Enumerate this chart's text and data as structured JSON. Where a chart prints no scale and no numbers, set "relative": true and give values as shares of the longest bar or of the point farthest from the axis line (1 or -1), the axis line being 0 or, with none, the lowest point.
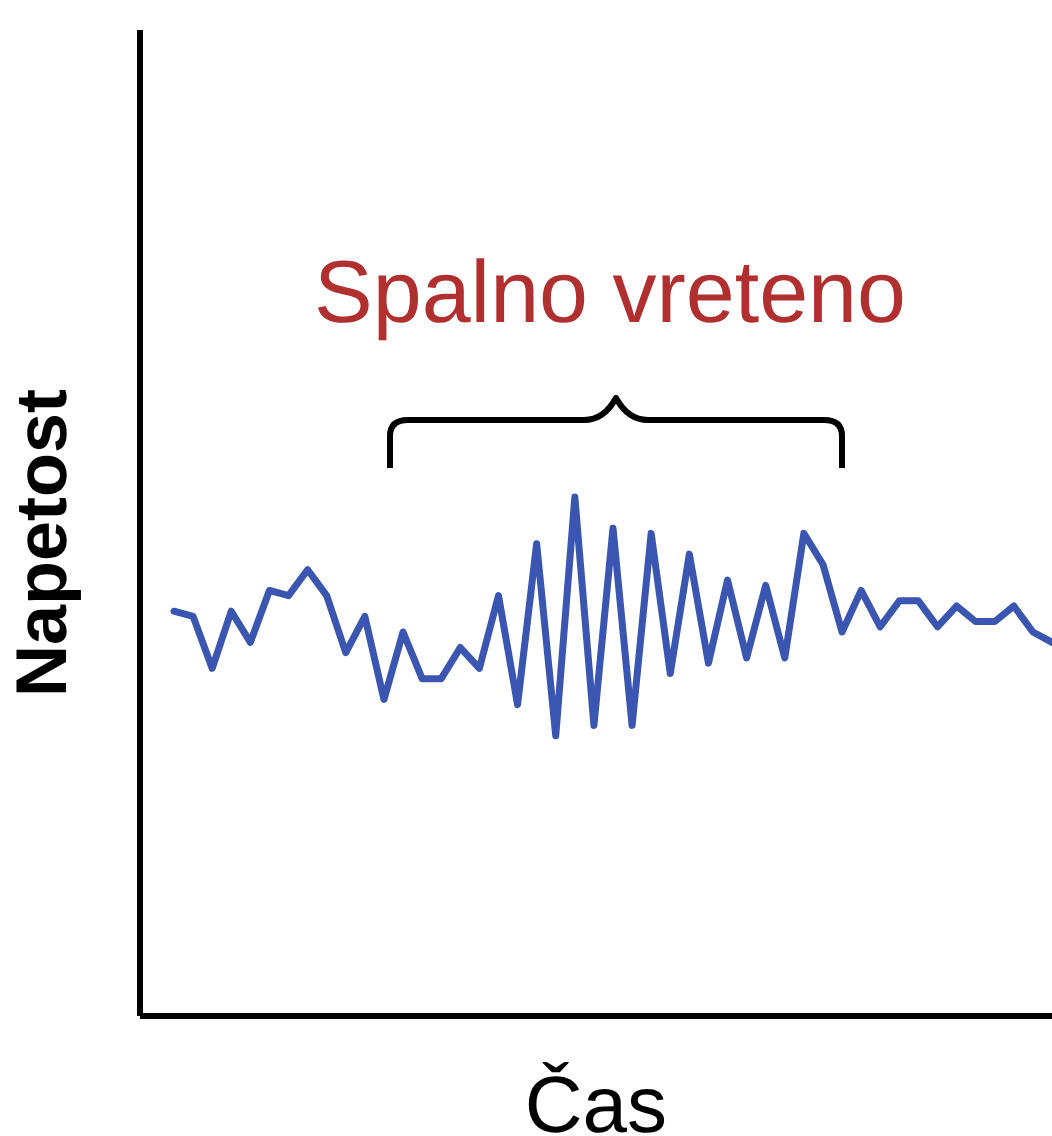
{
  "chart_data": {
    "type": "line",
    "title": "Spalno vreteno",
    "xlabel": "Čas",
    "ylabel": "Napetost",
    "relative": true,
    "grid": false,
    "legend": false,
    "marker": "none",
    "line_style": "solid",
    "categories": [
      null,
      null,
      null,
      null,
      null,
      null,
      null,
      null,
      null,
      null,
      null,
      null,
      null,
      null,
      null,
      null,
      null,
      null,
      null,
      null,
      null,
      null,
      null,
      null,
      null,
      null,
      null,
      null,
      null,
      null,
      null,
      null,
      null,
      null,
      null,
      null,
      null,
      null,
      null,
      null,
      null,
      null,
      null,
      null,
      null,
      null,
      null
    ],
    "series": [
      {
        "color": "#3a56b0",
        "values": [
          0.78,
          0.77,
          0.67,
          0.78,
          0.72,
          0.82,
          0.81,
          0.86,
          0.81,
          0.7,
          0.77,
          0.61,
          0.74,
          0.65,
          0.65,
          0.71,
          0.67,
          0.81,
          0.6,
          0.91,
          0.54,
          1.0,
          0.56,
          0.94,
          0.56,
          0.93,
          0.66,
          0.89,
          0.68,
          0.84,
          0.69,
          0.83,
          0.69,
          0.93,
          0.87,
          0.74,
          0.82,
          0.75,
          0.8,
          0.8,
          0.75,
          0.79,
          0.76,
          0.76,
          0.79,
          0.74,
          0.72
        ]
      }
    ]
  }
}
